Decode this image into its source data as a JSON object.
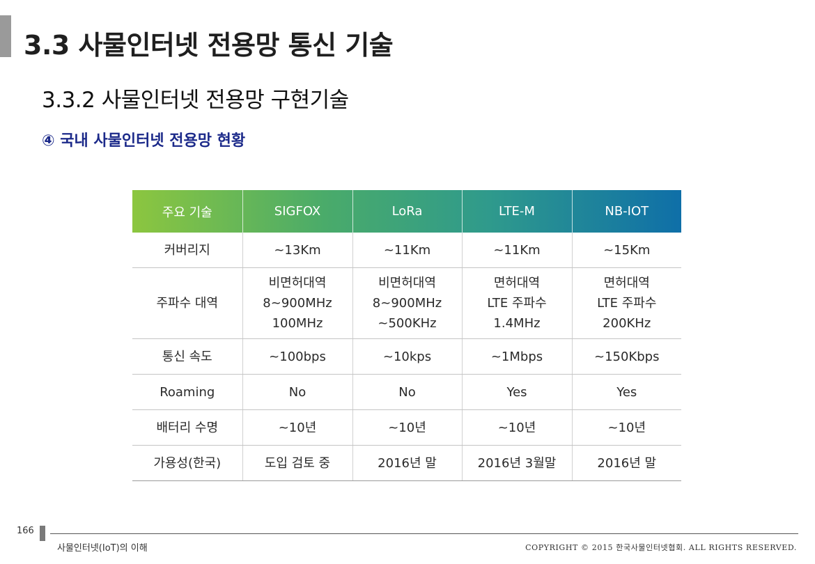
{
  "header": {
    "title": "3.3 사물인터넷 전용망 통신 기술",
    "subtitle": "3.3.2 사물인터넷 전용망 구현기술",
    "section": "④ 국내 사물인터넷 전용망 현황"
  },
  "table": {
    "columns": [
      "주요 기술",
      "SIGFOX",
      "LoRa",
      "LTE-M",
      "NB-IOT"
    ],
    "rows": [
      {
        "label": "커버리지",
        "cells": [
          [
            "~13Km"
          ],
          [
            "~11Km"
          ],
          [
            "~11Km"
          ],
          [
            "~15Km"
          ]
        ]
      },
      {
        "label": "주파수 대역",
        "cells": [
          [
            "비면허대역",
            "8~900MHz",
            "100MHz"
          ],
          [
            "비면허대역",
            "8~900MHz",
            "~500KHz"
          ],
          [
            "면허대역",
            "LTE 주파수",
            "1.4MHz"
          ],
          [
            "면허대역",
            "LTE 주파수",
            "200KHz"
          ]
        ]
      },
      {
        "label": "통신 속도",
        "cells": [
          [
            "~100bps"
          ],
          [
            "~10kps"
          ],
          [
            "~1Mbps"
          ],
          [
            "~150Kbps"
          ]
        ]
      },
      {
        "label": "Roaming",
        "cells": [
          [
            "No"
          ],
          [
            "No"
          ],
          [
            "Yes"
          ],
          [
            "Yes"
          ]
        ]
      },
      {
        "label": "배터리 수명",
        "cells": [
          [
            "~10년"
          ],
          [
            "~10년"
          ],
          [
            "~10년"
          ],
          [
            "~10년"
          ]
        ]
      },
      {
        "label": "가용성(한국)",
        "cells": [
          [
            "도입 검토 중"
          ],
          [
            "2016년 말"
          ],
          [
            "2016년 3월말"
          ],
          [
            "2016년 말"
          ]
        ]
      }
    ]
  },
  "footer": {
    "page_number": "166",
    "book_title": "사물인터넷(IoT)의 이해",
    "copyright": "COPYRIGHT © 2015 한국사물인터넷협회. ALL RIGHTS RESERVED."
  },
  "colors": {
    "header_gradient_start": "#8cc63f",
    "header_gradient_end": "#0f6fa8",
    "section_title": "#1c2a8a"
  }
}
